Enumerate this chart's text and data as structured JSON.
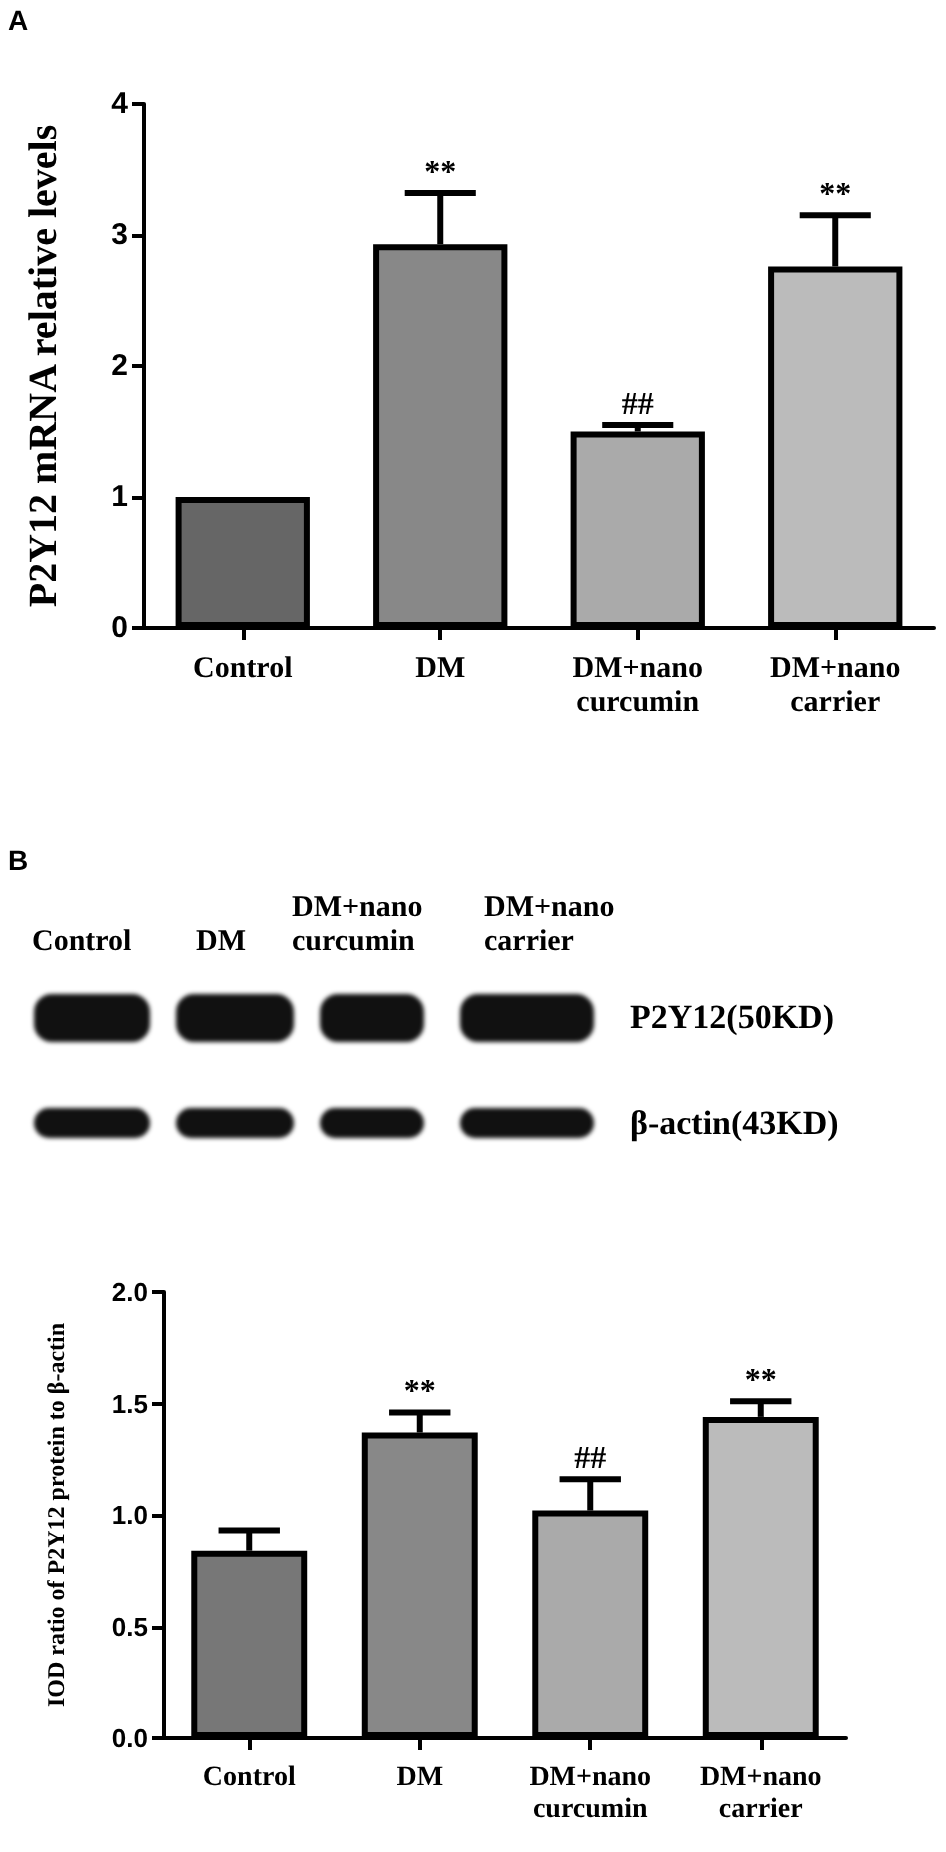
{
  "chart_data": [
    {
      "type": "bar",
      "title": "A",
      "ylabel": "P2Y12 mRNA relative levels",
      "categories": [
        "Control",
        "DM",
        "DM+nano\ncurcumin",
        "DM+nano\ncarrier"
      ],
      "values": [
        1.0,
        2.93,
        1.5,
        2.76
      ],
      "errors": [
        null,
        0.39,
        0.05,
        0.39
      ],
      "colors": [
        "#666666",
        "#888888",
        "#aaaaaa",
        "#bbbbbb"
      ],
      "ylim": [
        0,
        4
      ],
      "yticks": [
        0,
        1,
        2,
        3,
        4
      ],
      "grid": false,
      "annotations": [
        {
          "text": "**",
          "x": "DM",
          "y": 3.32
        },
        {
          "text": "##",
          "x": "DM+nano\ncurcumin",
          "y": 1.55
        },
        {
          "text": "**",
          "x": "DM+nano\ncarrier",
          "y": 3.15
        }
      ]
    },
    {
      "type": "other",
      "title": "B",
      "annotations": [
        "Control",
        "DM",
        "DM+nano\ncurcumin",
        "DM+nano\ncarrier",
        "P2Y12(50KD)",
        "β-actin(43KD)"
      ]
    },
    {
      "type": "bar",
      "ylabel": "IOD ratio of P2Y12 protein to β-actin",
      "categories": [
        "Control",
        "DM",
        "DM+nano\ncurcumin",
        "DM+nano\ncarrier"
      ],
      "values": [
        0.84,
        1.37,
        1.02,
        1.44
      ],
      "errors": [
        0.09,
        0.09,
        0.14,
        0.07
      ],
      "colors": [
        "#777777",
        "#888888",
        "#aaaaaa",
        "#bbbbbb"
      ],
      "ylim": [
        0,
        2
      ],
      "yticks": [
        {
          "value": 0,
          "label": "0.0"
        },
        {
          "value": 0.5,
          "label": "0.5"
        },
        {
          "value": 1,
          "label": "1.0"
        },
        {
          "value": 1.5,
          "label": "1.5"
        },
        {
          "value": 2,
          "label": "2.0"
        }
      ],
      "grid": false,
      "annotations": [
        {
          "text": "**",
          "x": "DM",
          "y": 1.46
        },
        {
          "text": "##",
          "x": "DM+nano\ncurcumin",
          "y": 1.16
        },
        {
          "text": "**",
          "x": "DM+nano\ncarrier",
          "y": 1.51
        }
      ]
    }
  ]
}
